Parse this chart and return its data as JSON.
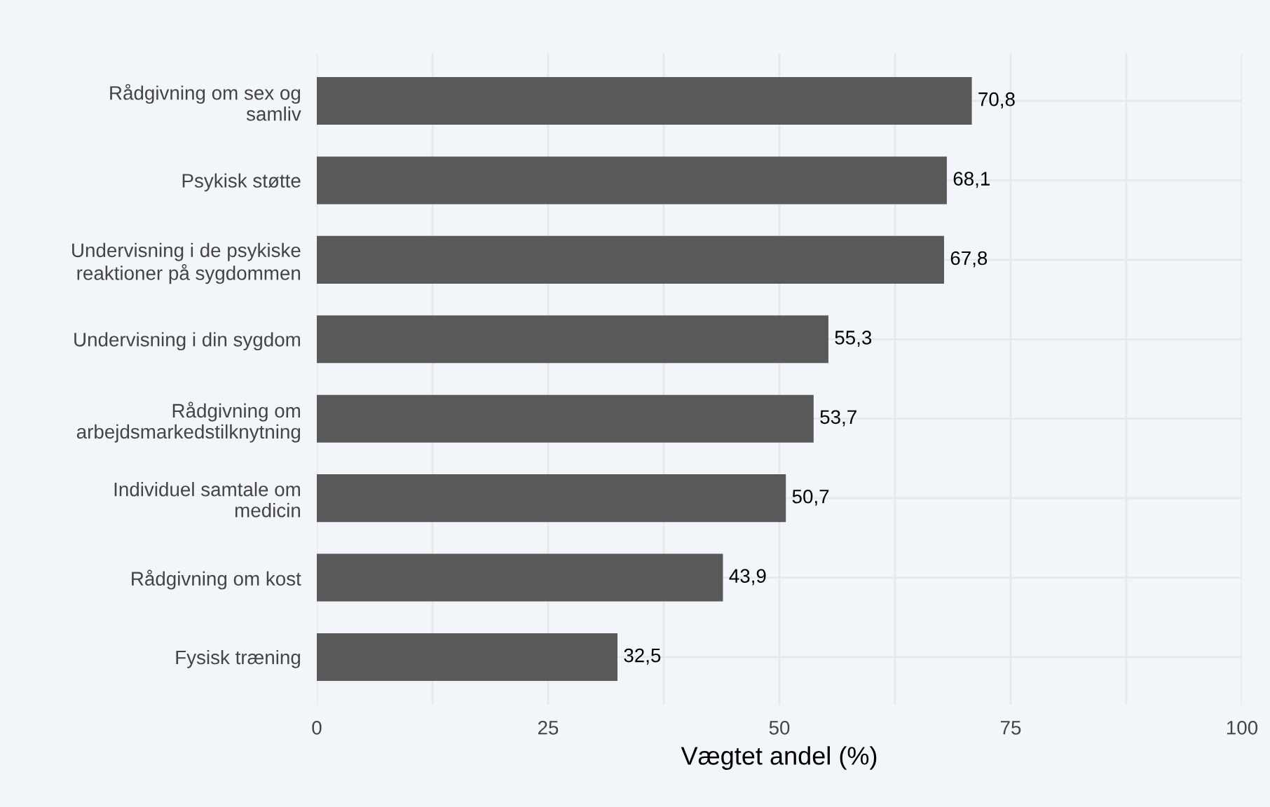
{
  "chart_data": {
    "type": "bar",
    "orientation": "horizontal",
    "categories": [
      "Rådgivning om sex og\nsamliv",
      "Psykisk støtte",
      "Undervisning i de psykiske\nreaktioner på sygdommen",
      "Undervisning i din sygdom",
      "Rådgivning om\narbejdsmarkedstilknytning",
      "Individuel samtale om\nmedicin",
      "Rådgivning om kost",
      "Fysisk træning"
    ],
    "values": [
      70.8,
      68.1,
      67.8,
      55.3,
      53.7,
      50.7,
      43.9,
      32.5
    ],
    "value_labels": [
      "70,8",
      "68,1",
      "67,8",
      "55,3",
      "53,7",
      "50,7",
      "43,9",
      "32,5"
    ],
    "color": "#595959",
    "xlabel": "Vægtet andel (%)",
    "xlim": [
      0,
      100
    ],
    "xticks": [
      0,
      {
        "value": 12.5,
        "label": null
      },
      25,
      {
        "value": 37.5,
        "label": null
      },
      50,
      {
        "value": 62.5,
        "label": null
      },
      75,
      {
        "value": 87.5,
        "label": null
      },
      100
    ],
    "grid": true
  }
}
